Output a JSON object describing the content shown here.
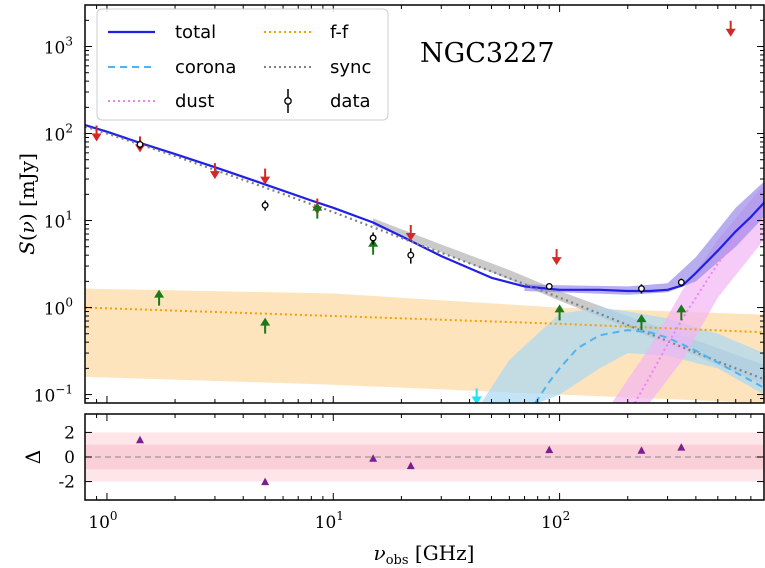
{
  "chart_data": [
    {
      "type": "scatter",
      "title": "NGC3227",
      "xlabel": "ν_obs [GHz]",
      "ylabel": "S(ν) [mJy]",
      "xscale": "log",
      "yscale": "log",
      "xlim": [
        0.8,
        800
      ],
      "ylim": [
        0.08,
        3000
      ],
      "legend_position": "top-left",
      "x_ticks": [
        {
          "value": 1,
          "base": "10",
          "exp": "0"
        },
        {
          "value": 10,
          "base": "10",
          "exp": "1"
        },
        {
          "value": 100,
          "base": "10",
          "exp": "2"
        }
      ],
      "y_ticks": [
        {
          "value": 0.1,
          "base": "10",
          "exp": "−1"
        },
        {
          "value": 1,
          "base": "10",
          "exp": "0"
        },
        {
          "value": 10,
          "base": "10",
          "exp": "1"
        },
        {
          "value": 100,
          "base": "10",
          "exp": "2"
        },
        {
          "value": 1000,
          "base": "10",
          "exp": "3"
        }
      ],
      "legend": [
        {
          "key": "total",
          "label": "total",
          "color": "#1f1fe8",
          "style": "solid"
        },
        {
          "key": "corona",
          "label": "corona",
          "color": "#4fb3ee",
          "style": "dashed"
        },
        {
          "key": "dust",
          "label": "dust",
          "color": "#ee82ee",
          "style": "dotted"
        },
        {
          "key": "ff",
          "label": "f-f",
          "color": "#f5a000",
          "style": "dotted"
        },
        {
          "key": "sync",
          "label": "sync",
          "color": "#808080",
          "style": "dotted"
        },
        {
          "key": "data",
          "label": "data",
          "color": "#000000",
          "style": "errorbar"
        }
      ],
      "series": [
        {
          "name": "total",
          "color": "#1f1fe8",
          "x": [
            0.8,
            1,
            1.4,
            2,
            3,
            5,
            8,
            10,
            15,
            20,
            30,
            50,
            70,
            100,
            150,
            200,
            250,
            300,
            350,
            400,
            500,
            600,
            700,
            800
          ],
          "y": [
            125,
            105,
            78,
            58,
            41,
            26,
            17,
            14,
            9.5,
            6.6,
            3.9,
            2.2,
            1.75,
            1.6,
            1.6,
            1.55,
            1.55,
            1.6,
            1.8,
            2.5,
            4.5,
            7.5,
            11,
            16
          ]
        },
        {
          "name": "sync",
          "color": "#808080",
          "x": [
            0.8,
            1,
            2,
            5,
            10,
            20,
            50,
            100,
            200,
            500,
            800
          ],
          "y": [
            120,
            100,
            55,
            24,
            12.5,
            6.3,
            2.6,
            1.3,
            0.63,
            0.24,
            0.15
          ]
        },
        {
          "name": "f-f",
          "color": "#f5a000",
          "x": [
            0.8,
            1,
            10,
            100,
            800
          ],
          "y": [
            1.0,
            0.98,
            0.8,
            0.65,
            0.52
          ]
        },
        {
          "name": "corona",
          "color": "#4fb3ee",
          "x": [
            78,
            90,
            100,
            120,
            150,
            200,
            250,
            300,
            400,
            600,
            800
          ],
          "y": [
            0.08,
            0.14,
            0.2,
            0.34,
            0.48,
            0.55,
            0.52,
            0.45,
            0.32,
            0.18,
            0.12
          ]
        },
        {
          "name": "dust",
          "color": "#ee82ee",
          "x": [
            215,
            250,
            300,
            350,
            400,
            500,
            600,
            800
          ],
          "y": [
            0.08,
            0.16,
            0.38,
            0.75,
            1.3,
            3.2,
            6,
            14
          ]
        }
      ],
      "bands": [
        {
          "name": "f-f band",
          "color": "#fcd9a0",
          "x": [
            0.8,
            10,
            100,
            800
          ],
          "low": [
            0.16,
            0.13,
            0.1,
            0.08
          ],
          "high": [
            1.65,
            1.45,
            1.0,
            0.83
          ]
        },
        {
          "name": "sync band",
          "color": "#b4b4b4",
          "x": [
            15,
            30,
            60,
            100,
            200,
            400,
            800
          ],
          "low": [
            8.8,
            4.3,
            2.1,
            1.2,
            0.58,
            0.28,
            0.13
          ],
          "high": [
            10.6,
            5.3,
            2.7,
            1.55,
            0.8,
            0.42,
            0.22
          ]
        },
        {
          "name": "corona band",
          "color": "#a9d7f4",
          "x": [
            45,
            60,
            80,
            100,
            150,
            200,
            300,
            500,
            800
          ],
          "low": [
            0.08,
            0.08,
            0.08,
            0.1,
            0.2,
            0.3,
            0.28,
            0.2,
            0.1
          ],
          "high": [
            0.08,
            0.25,
            0.5,
            0.85,
            1.0,
            0.9,
            0.75,
            0.5,
            0.3
          ]
        },
        {
          "name": "dust band",
          "color": "#f4b5f4",
          "x": [
            170,
            250,
            350,
            500,
            800
          ],
          "low": [
            0.08,
            0.08,
            0.25,
            1.3,
            6
          ],
          "high": [
            0.08,
            0.35,
            1.6,
            6,
            26
          ]
        },
        {
          "name": "total band",
          "color": "#9a8ae8",
          "x": [
            70,
            100,
            200,
            300,
            400,
            600,
            800
          ],
          "low": [
            1.55,
            1.5,
            1.4,
            1.5,
            2.0,
            5,
            11
          ],
          "high": [
            1.85,
            1.8,
            1.75,
            1.9,
            3.8,
            14,
            28
          ]
        }
      ],
      "data": [
        {
          "x": 1.4,
          "y": 75,
          "err_lo": 8,
          "err_hi": 8
        },
        {
          "x": 5.0,
          "y": 15,
          "err_lo": 2,
          "err_hi": 2
        },
        {
          "x": 15.0,
          "y": 6.3,
          "err_lo": 1,
          "err_hi": 1
        },
        {
          "x": 22.0,
          "y": 4.0,
          "err_lo": 0.8,
          "err_hi": 0.8
        },
        {
          "x": 90.0,
          "y": 1.75,
          "err_lo": 0.1,
          "err_hi": 0.1
        },
        {
          "x": 230.0,
          "y": 1.65,
          "err_lo": 0.2,
          "err_hi": 0.2
        },
        {
          "x": 345.0,
          "y": 1.95,
          "err_lo": 0.2,
          "err_hi": 0.2
        }
      ],
      "upper_limits": [
        {
          "x": 0.9,
          "y": 100,
          "color": "#d62728"
        },
        {
          "x": 1.4,
          "y": 75,
          "color": "#d62728"
        },
        {
          "x": 3.0,
          "y": 37,
          "color": "#d62728"
        },
        {
          "x": 5.0,
          "y": 32,
          "color": "#d62728"
        },
        {
          "x": 8.5,
          "y": 14.5,
          "color": "#d62728"
        },
        {
          "x": 22.0,
          "y": 7.2,
          "color": "#d62728"
        },
        {
          "x": 97.0,
          "y": 3.8,
          "color": "#d62728"
        },
        {
          "x": 570.0,
          "y": 1600,
          "color": "#d62728"
        },
        {
          "x": 43.0,
          "y": 0.095,
          "color": "#22e0f0"
        }
      ],
      "lower_limits": [
        {
          "x": 1.7,
          "y": 1.3,
          "color": "#1a7a1a"
        },
        {
          "x": 5.0,
          "y": 0.62,
          "color": "#1a7a1a"
        },
        {
          "x": 8.5,
          "y": 13.0,
          "color": "#1a7a1a"
        },
        {
          "x": 15.0,
          "y": 5.0,
          "color": "#1a7a1a"
        },
        {
          "x": 100.0,
          "y": 0.88,
          "color": "#1a7a1a"
        },
        {
          "x": 230.0,
          "y": 0.68,
          "color": "#1a7a1a"
        },
        {
          "x": 345.0,
          "y": 0.88,
          "color": "#1a7a1a"
        }
      ]
    },
    {
      "type": "scatter",
      "ylabel": "Δ",
      "xscale": "log",
      "xlim": [
        0.8,
        800
      ],
      "ylim": [
        -3.5,
        3.5
      ],
      "y_ticks": [
        {
          "value": 2,
          "label": "2"
        },
        {
          "value": 0,
          "label": "0"
        },
        {
          "value": -2,
          "label": "-2"
        }
      ],
      "bands": [
        {
          "low": -2,
          "high": 2,
          "color": "#fde5ea"
        },
        {
          "low": -1,
          "high": 1,
          "color": "#fbcfd8"
        }
      ],
      "zero_line_color": "#999999",
      "points_color": "#7b1e8f",
      "points": [
        {
          "x": 1.4,
          "y": 1.4
        },
        {
          "x": 5.0,
          "y": -2.0
        },
        {
          "x": 15.0,
          "y": -0.1
        },
        {
          "x": 22.0,
          "y": -0.7
        },
        {
          "x": 90.0,
          "y": 0.6
        },
        {
          "x": 230.0,
          "y": 0.55
        },
        {
          "x": 345.0,
          "y": 0.8
        }
      ]
    }
  ]
}
